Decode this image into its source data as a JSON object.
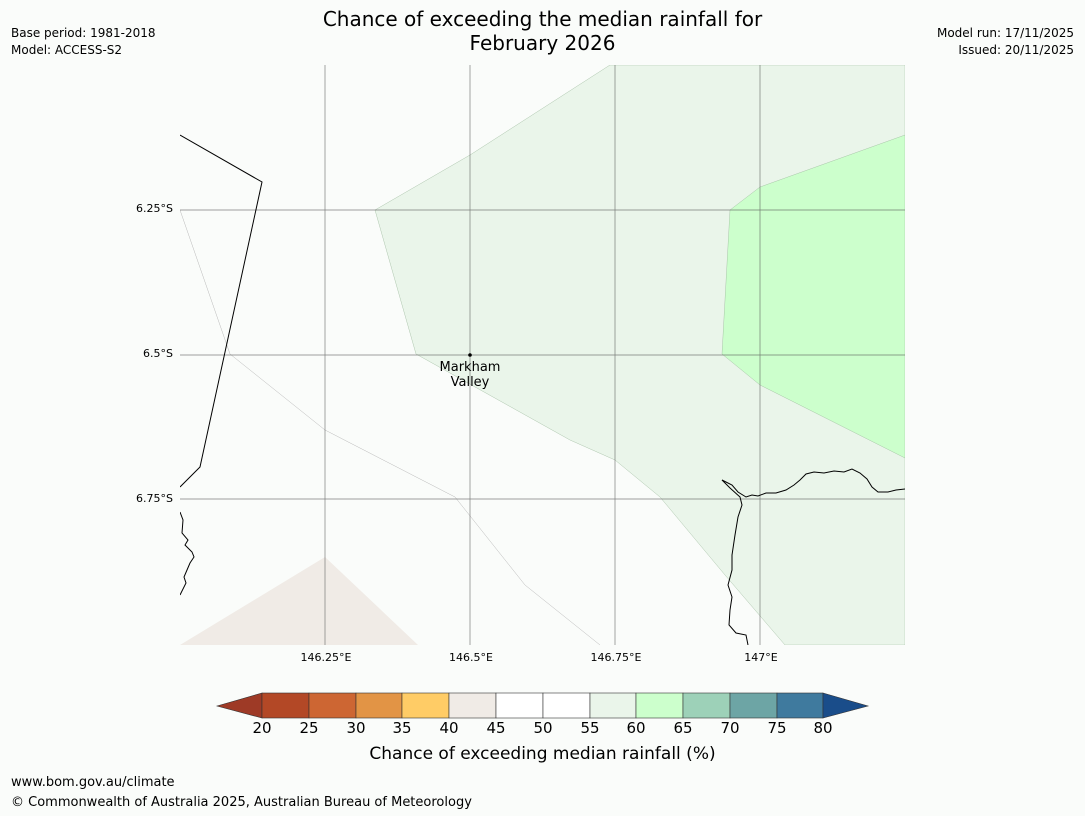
{
  "header": {
    "title_line1": "Chance of exceeding the median rainfall for",
    "title_line2": "February 2026",
    "base_period": "Base period: 1981-2018",
    "model": "Model: ACCESS-S2",
    "model_run": "Model run: 17/11/2025",
    "issued": "Issued: 20/11/2025"
  },
  "map": {
    "lat_labels": [
      "6.25°S",
      "6.5°S",
      "6.75°S"
    ],
    "lon_labels": [
      "146.25°E",
      "146.5°E",
      "146.75°E",
      "147°E"
    ],
    "place": {
      "line1": "Markham",
      "line2": "Valley"
    }
  },
  "colorbar": {
    "ticks": [
      "20",
      "25",
      "30",
      "35",
      "40",
      "45",
      "50",
      "55",
      "60",
      "65",
      "70",
      "75",
      "80"
    ],
    "colors": {
      "under": "#9e3a26",
      "c20_25": "#b34826",
      "c25_30": "#cd6633",
      "c30_35": "#e29445",
      "c35_40": "#ffcc66",
      "c40_45": "#f0ebe6",
      "c45_50": "#ffffff",
      "c50_55": "#ffffff",
      "c55_60": "#eaf5ea",
      "c60_65": "#ccffcc",
      "c65_70": "#9dd1b8",
      "c70_75": "#6da5a5",
      "c75_80": "#3f7a9e",
      "over": "#1a4d8a"
    },
    "label": "Chance of exceeding median rainfall (%)"
  },
  "footer": {
    "url": "www.bom.gov.au/climate",
    "copyright": "© Commonwealth of Australia 2025, Australian Bureau of Meteorology"
  }
}
